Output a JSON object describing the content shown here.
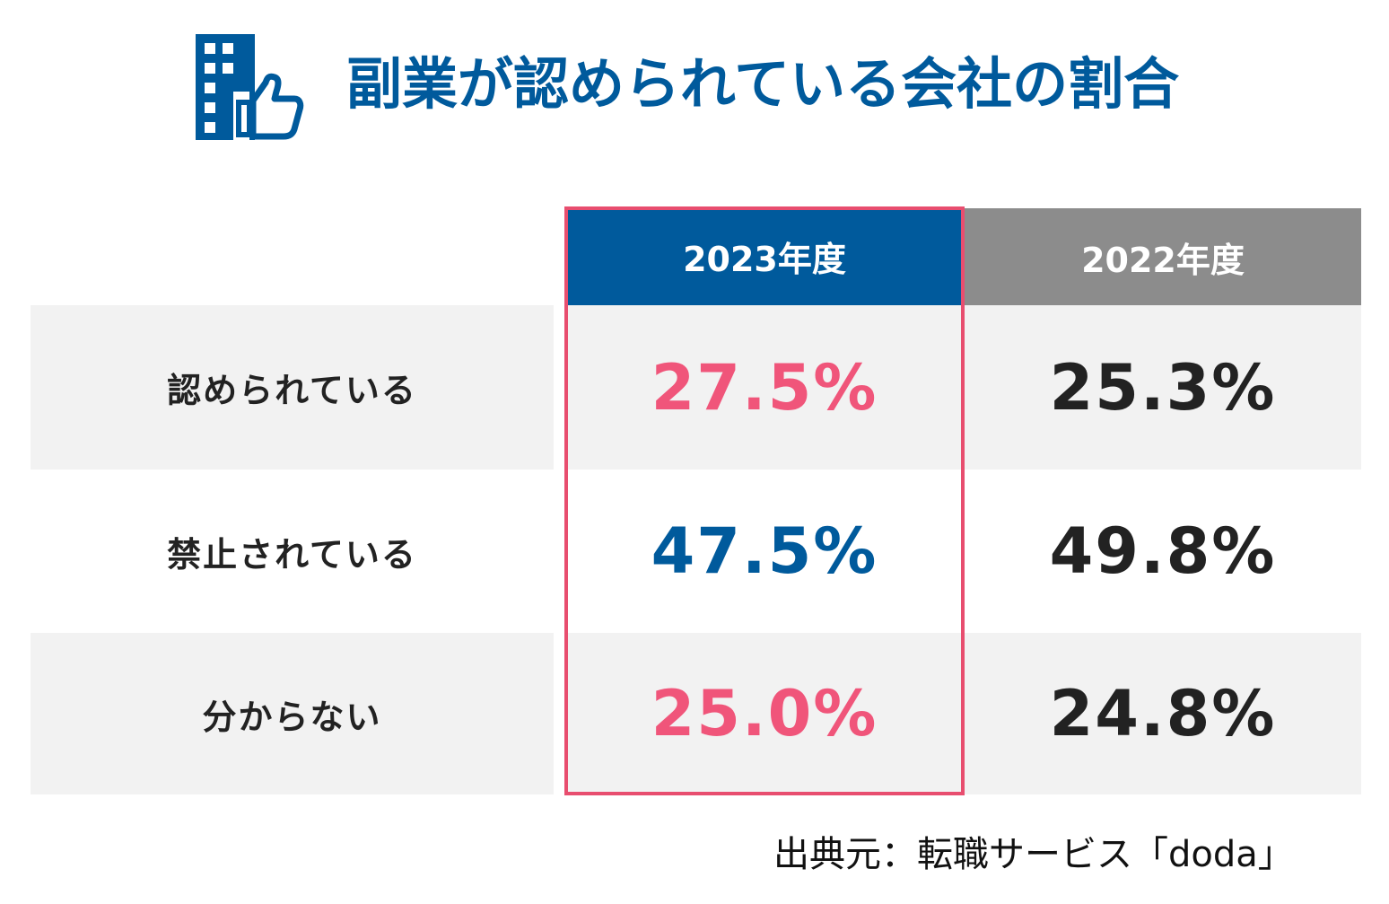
{
  "header": {
    "icon": "building-thumbs-up-icon",
    "title": "副業が認められている会社の割合"
  },
  "colors": {
    "brand_blue": "#005a9c",
    "highlight_pink": "#f0557a",
    "frame_pink": "#e84e6f",
    "gray_header": "#8c8c8c",
    "row_shade": "#f2f2f2",
    "text_dark": "#222222"
  },
  "chart_data": {
    "type": "table",
    "title": "副業が認められている会社の割合",
    "columns": [
      "2023年度",
      "2022年度"
    ],
    "highlighted_column": "2023年度",
    "rows": [
      {
        "label": "認められている",
        "values": [
          "27.5%",
          "25.3%"
        ]
      },
      {
        "label": "禁止されている",
        "values": [
          "47.5%",
          "49.8%"
        ]
      },
      {
        "label": "分からない",
        "values": [
          "25.0%",
          "24.8%"
        ]
      }
    ],
    "series": [
      {
        "name": "2023年度",
        "values": [
          27.5,
          47.5,
          25.0
        ]
      },
      {
        "name": "2022年度",
        "values": [
          25.3,
          49.8,
          24.8
        ]
      }
    ],
    "categories": [
      "認められている",
      "禁止されている",
      "分からない"
    ],
    "value_colors_2023": [
      "pink",
      "blue",
      "pink"
    ]
  },
  "source": "出典元：転職サービス「doda」"
}
